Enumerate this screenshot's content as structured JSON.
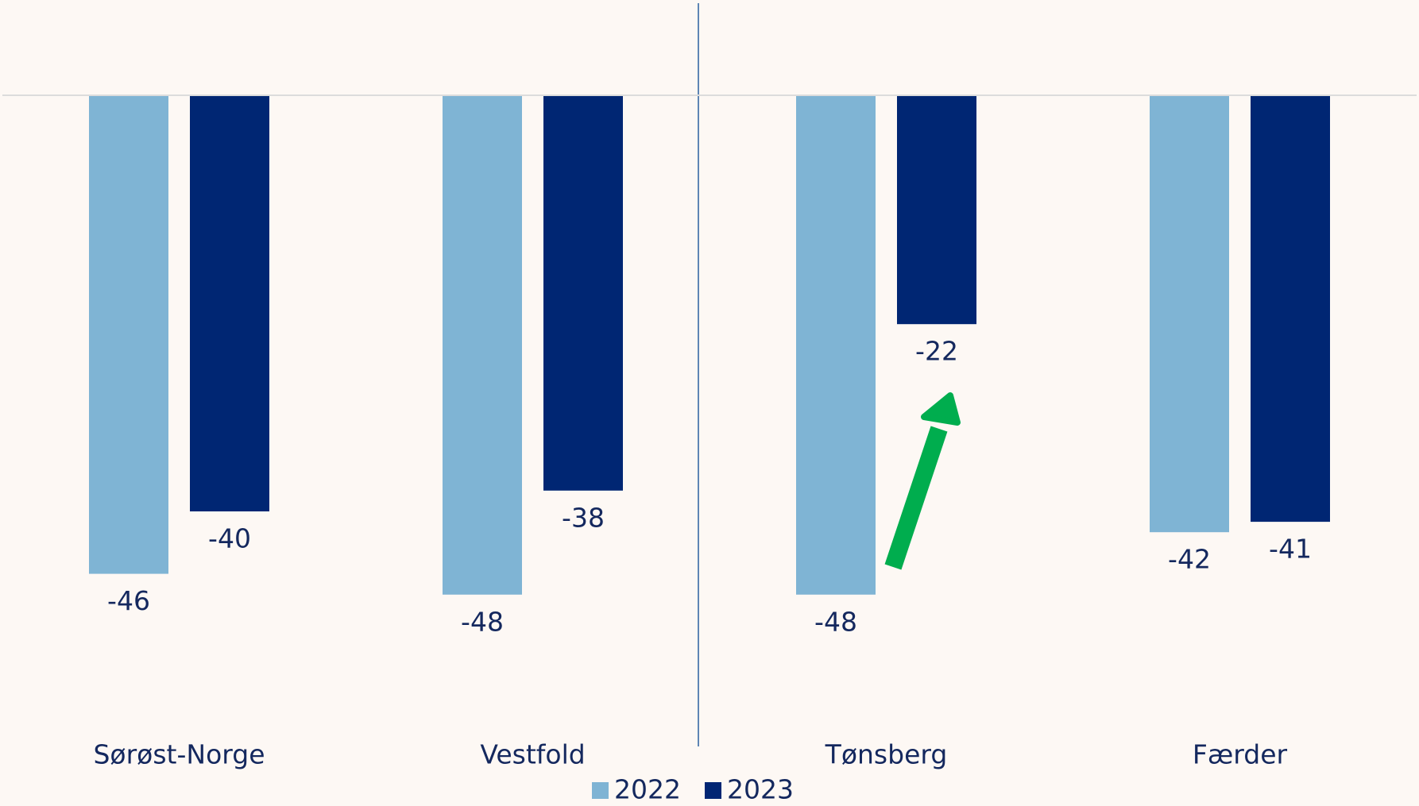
{
  "chart_data": {
    "type": "bar",
    "categories": [
      "Sørøst-Norge",
      "Vestfold",
      "Tønsberg",
      "Færder"
    ],
    "series": [
      {
        "name": "2022",
        "color": "#7fb4d4",
        "values": [
          -46,
          -48,
          -48,
          -42
        ]
      },
      {
        "name": "2023",
        "color": "#002673",
        "values": [
          -40,
          -38,
          -22,
          -41
        ]
      }
    ],
    "ylim": [
      -55,
      0
    ],
    "legend": "bottom"
  }
}
